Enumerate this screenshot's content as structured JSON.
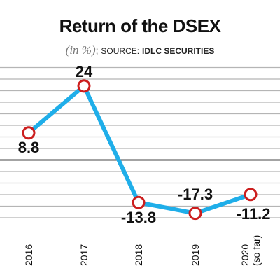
{
  "header": {
    "title": "Return of the DSEX",
    "unit": "(in %)",
    "separator": ";",
    "source_label": "SOURCE:",
    "source_name": "IDLC SECURITIES"
  },
  "chart_data": {
    "type": "line",
    "title": "Return of the DSEX",
    "xlabel": "",
    "ylabel": "",
    "categories": [
      "2016",
      "2017",
      "2018",
      "2019",
      "2020 (so far)"
    ],
    "category_lines": [
      [
        "2016"
      ],
      [
        "2017"
      ],
      [
        "2018"
      ],
      [
        "2019"
      ],
      [
        "2020",
        "(so far)"
      ]
    ],
    "series": [
      {
        "values": [
          8.8,
          24,
          -13.8,
          -17.3,
          -11.2
        ]
      }
    ],
    "data_labels": [
      "8.8",
      "24",
      "-13.8",
      "-17.3",
      "-11.2"
    ],
    "ylim": [
      -20,
      30
    ],
    "zero_line": true,
    "grid": true,
    "line_color": "#1faee9",
    "marker_color": "#cc1f1f",
    "grid_color": "#b5b5b5"
  }
}
